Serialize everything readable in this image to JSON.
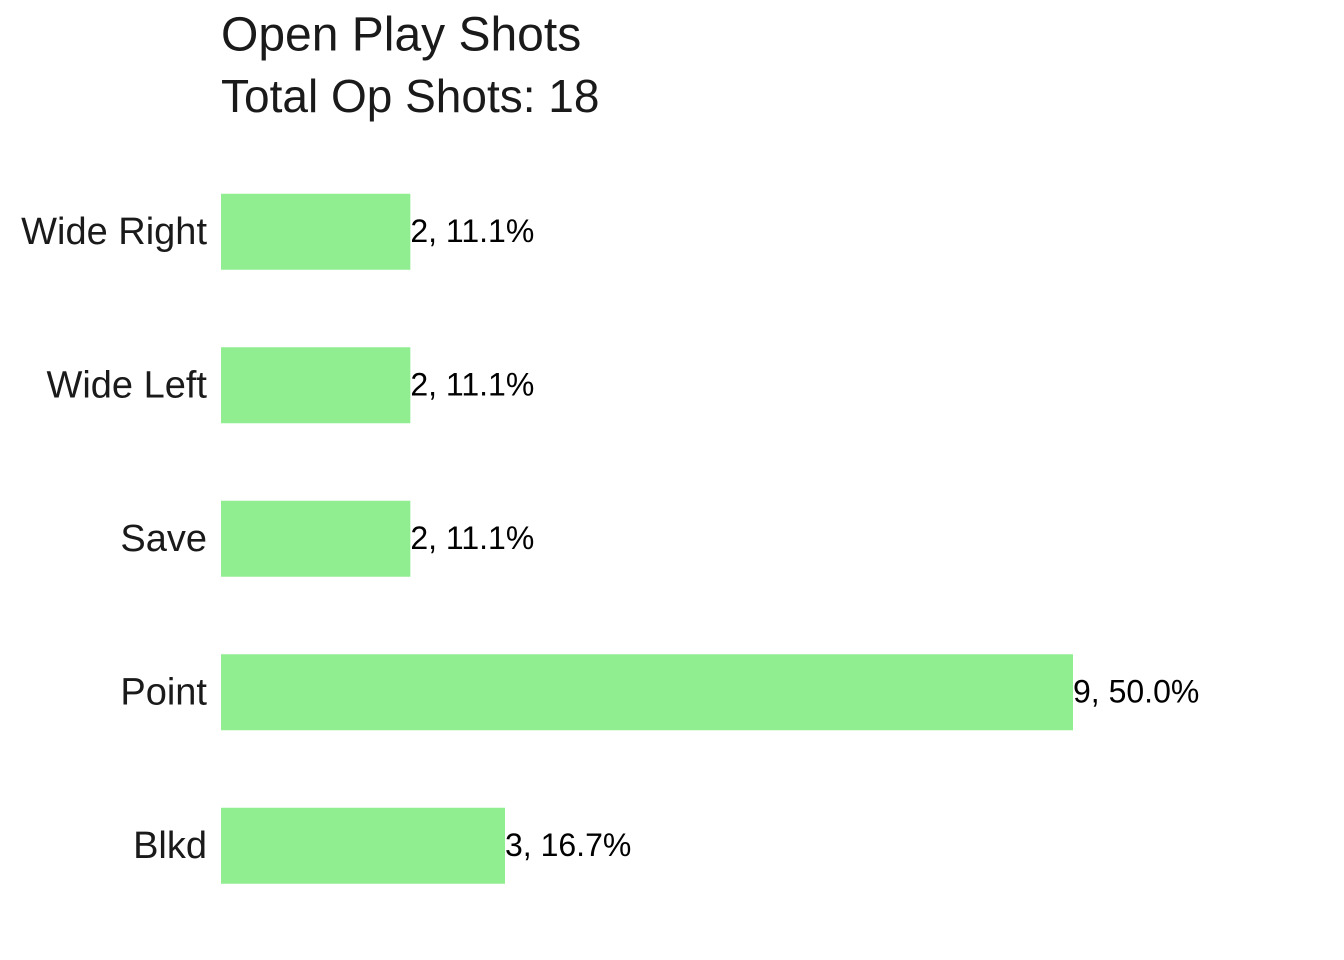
{
  "chart_data": {
    "type": "bar",
    "orientation": "horizontal",
    "title": "Open Play Shots",
    "subtitle": "Total Op Shots: 18",
    "categories": [
      "Wide Right",
      "Wide Left",
      "Save",
      "Point",
      "Blkd"
    ],
    "values": [
      2,
      2,
      2,
      9,
      3
    ],
    "value_labels": [
      "2, 11.1%",
      "2, 11.1%",
      "2, 11.1%",
      "9, 50.0%",
      "3, 16.7%"
    ],
    "color": "#90ee90",
    "grid": false
  }
}
